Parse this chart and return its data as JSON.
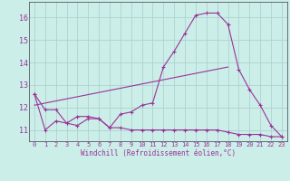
{
  "background_color": "#cceee8",
  "grid_color": "#aacccc",
  "line_color": "#993399",
  "axis_color": "#555566",
  "xlim": [
    -0.5,
    23.5
  ],
  "ylim": [
    10.5,
    16.7
  ],
  "yticks": [
    11,
    12,
    13,
    14,
    15,
    16
  ],
  "xticks": [
    0,
    1,
    2,
    3,
    4,
    5,
    6,
    7,
    8,
    9,
    10,
    11,
    12,
    13,
    14,
    15,
    16,
    17,
    18,
    19,
    20,
    21,
    22,
    23
  ],
  "xlabel": "Windchill (Refroidissement éolien,°C)",
  "series1_x": [
    0,
    1,
    2,
    3,
    4,
    5,
    6,
    7,
    8,
    9,
    10,
    11,
    12,
    13,
    14,
    15,
    16,
    17,
    18,
    19,
    20,
    21,
    22,
    23
  ],
  "series1_y": [
    12.6,
    11.9,
    11.9,
    11.3,
    11.2,
    11.5,
    11.5,
    11.1,
    11.7,
    11.8,
    12.1,
    12.2,
    13.8,
    14.5,
    15.3,
    16.1,
    16.2,
    16.2,
    15.7,
    13.7,
    12.8,
    12.1,
    11.2,
    10.7
  ],
  "series2_x": [
    0,
    1,
    2,
    3,
    4,
    5,
    6,
    7,
    8,
    9,
    10,
    11,
    12,
    13,
    14,
    15,
    16,
    17,
    18,
    19,
    20,
    21,
    22,
    23
  ],
  "series2_y": [
    12.6,
    11.0,
    11.4,
    11.3,
    11.6,
    11.6,
    11.5,
    11.1,
    11.1,
    11.0,
    11.0,
    11.0,
    11.0,
    11.0,
    11.0,
    11.0,
    11.0,
    11.0,
    10.9,
    10.8,
    10.8,
    10.8,
    10.7,
    10.7
  ],
  "series3_x": [
    0,
    18
  ],
  "series3_y": [
    12.1,
    13.8
  ],
  "figsize": [
    3.2,
    2.0
  ],
  "dpi": 100
}
